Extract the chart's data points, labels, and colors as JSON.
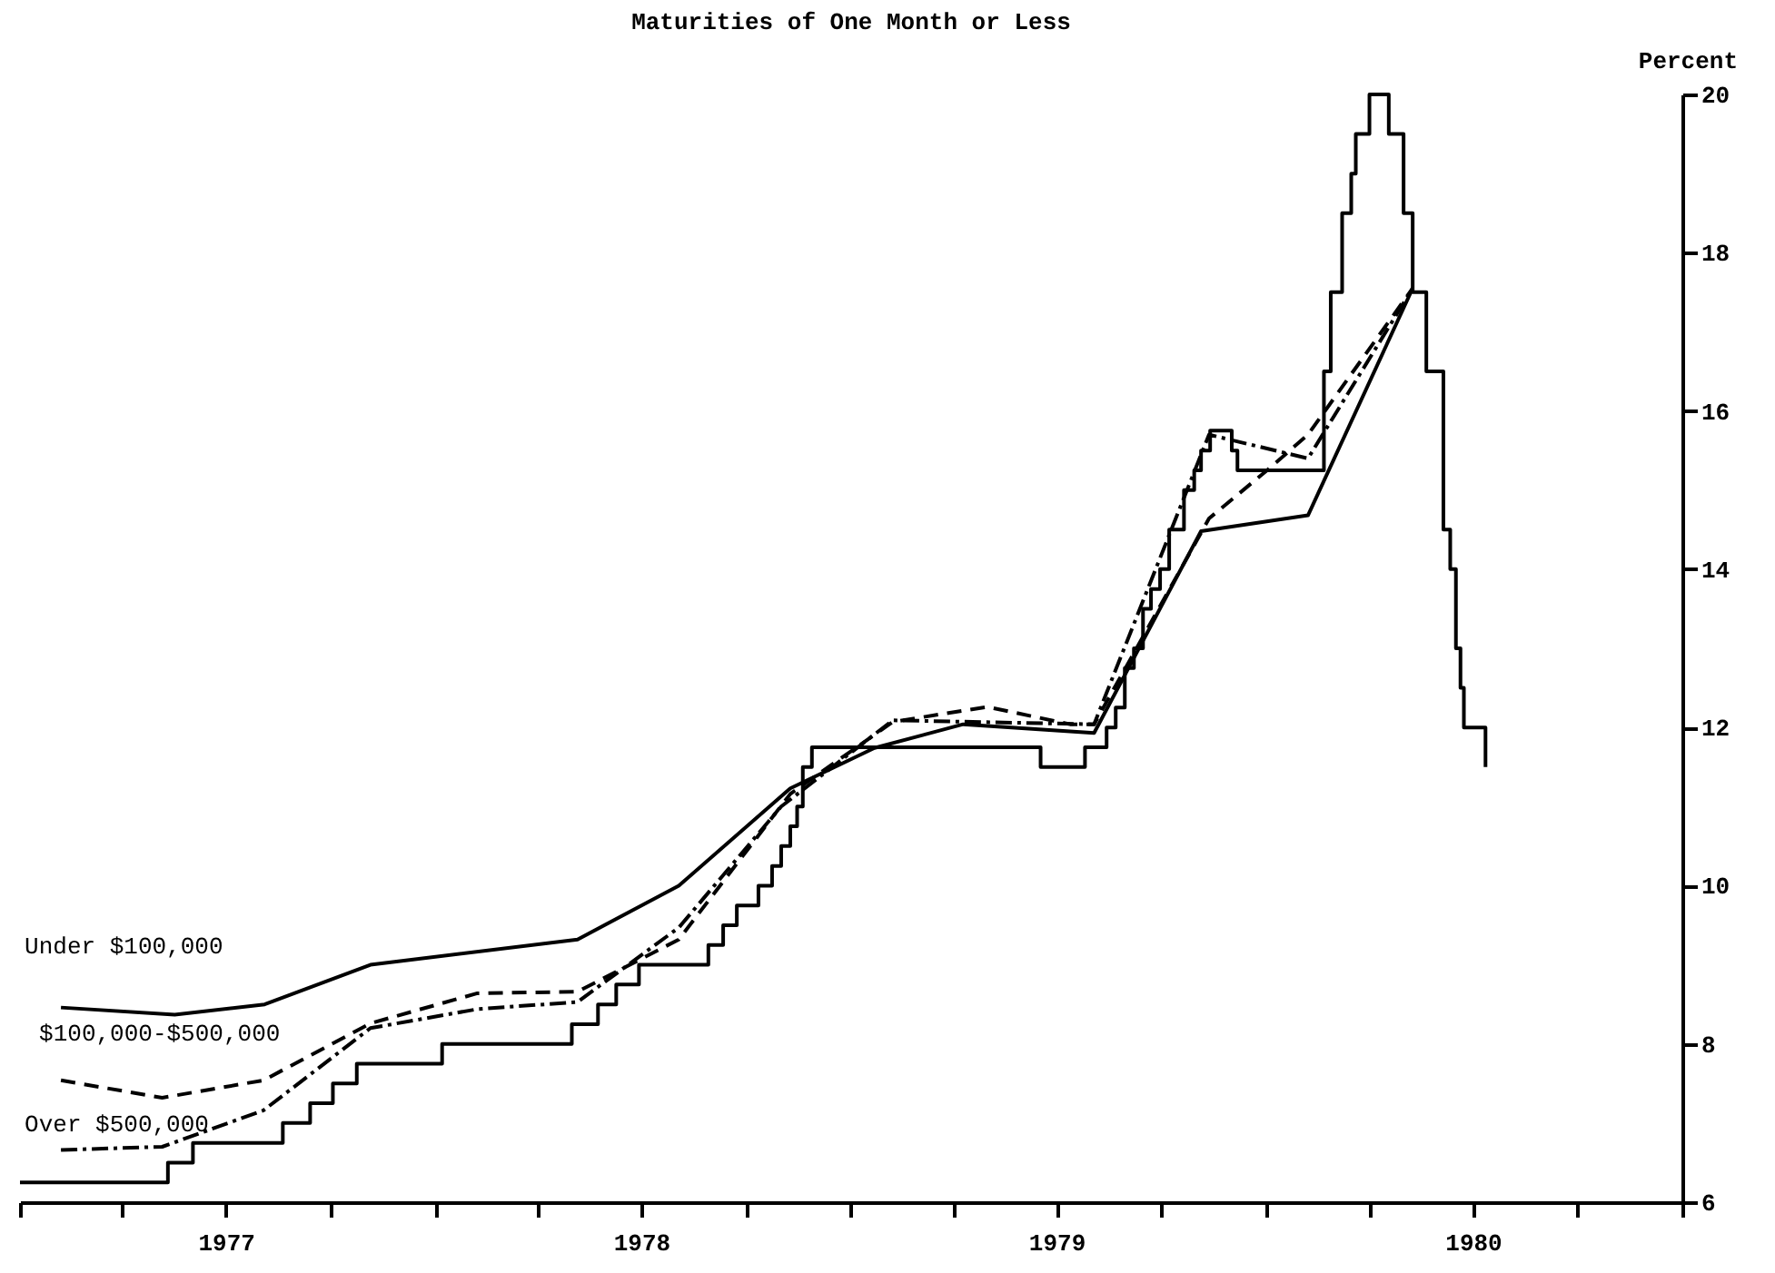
{
  "chart_data": {
    "type": "line",
    "title": "Maturities of One Month or Less",
    "ylabel": "Percent",
    "xlim": [
      "1977-01-01",
      "1981-01-01"
    ],
    "xticks": [
      {
        "value": "1977-01-01",
        "label": null
      },
      {
        "value": "1977-04-01",
        "label": null
      },
      {
        "value": "1977-07-01",
        "label": "1977"
      },
      {
        "value": "1977-10-01",
        "label": null
      },
      {
        "value": "1978-01-01",
        "label": null
      },
      {
        "value": "1978-04-01",
        "label": null
      },
      {
        "value": "1978-07-01",
        "label": "1978"
      },
      {
        "value": "1978-10-01",
        "label": null
      },
      {
        "value": "1979-01-01",
        "label": null
      },
      {
        "value": "1979-04-01",
        "label": null
      },
      {
        "value": "1979-07-01",
        "label": "1979"
      },
      {
        "value": "1979-10-01",
        "label": null
      },
      {
        "value": "1980-01-01",
        "label": null
      },
      {
        "value": "1980-04-01",
        "label": null
      },
      {
        "value": "1980-07-01",
        "label": "1980"
      },
      {
        "value": "1980-10-01",
        "label": null
      },
      {
        "value": "1981-01-01",
        "label": null
      }
    ],
    "ylim": [
      6,
      20
    ],
    "yticks": [
      6,
      8,
      10,
      12,
      14,
      16,
      18,
      20
    ],
    "grid": false,
    "series": [
      {
        "type": "step",
        "color": "#000000",
        "line_style": "solid",
        "x": [
          "1977-01-01",
          "1977-05-11",
          "1977-06-02",
          "1977-08-20",
          "1977-09-13",
          "1977-10-03",
          "1977-10-24",
          "1978-01-07",
          "1978-05-01",
          "1978-05-24",
          "1978-06-09",
          "1978-06-29",
          "1978-08-29",
          "1978-09-11",
          "1978-09-23",
          "1978-10-12",
          "1978-10-24",
          "1978-11-01",
          "1978-11-09",
          "1978-11-15",
          "1978-11-20",
          "1978-11-28",
          "1979-06-17",
          "1979-07-26",
          "1979-08-14",
          "1979-08-22",
          "1979-08-30",
          "1979-09-07",
          "1979-09-15",
          "1979-09-22",
          "1979-09-30",
          "1979-10-08",
          "1979-10-21",
          "1979-10-30",
          "1979-11-05",
          "1979-11-13",
          "1979-12-02",
          "1979-12-07",
          "1980-02-21",
          "1980-02-27",
          "1980-03-08",
          "1980-03-16",
          "1980-03-20",
          "1980-04-01",
          "1980-04-18",
          "1980-05-01",
          "1980-05-09",
          "1980-05-21",
          "1980-06-05",
          "1980-06-11",
          "1980-06-16",
          "1980-06-20",
          "1980-06-23",
          "1980-07-12"
        ],
        "values": [
          6.25,
          6.5,
          6.75,
          7.0,
          7.25,
          7.5,
          7.75,
          8.0,
          8.25,
          8.5,
          8.75,
          9.0,
          9.25,
          9.5,
          9.75,
          10.0,
          10.25,
          10.5,
          10.75,
          11.0,
          11.5,
          11.75,
          11.5,
          11.75,
          12.0,
          12.25,
          12.75,
          13.0,
          13.5,
          13.75,
          14.0,
          14.5,
          15.0,
          15.25,
          15.5,
          15.75,
          15.5,
          15.25,
          16.5,
          17.5,
          18.5,
          19.0,
          19.5,
          20.0,
          19.5,
          18.5,
          17.5,
          16.5,
          14.5,
          14.0,
          13.0,
          12.5,
          12.0,
          11.5
        ]
      },
      {
        "name": "Under $100,000",
        "color": "#000000",
        "line_style": "solid",
        "x": [
          "1977-02-06",
          "1977-05-17",
          "1977-08-04",
          "1977-11-05",
          "1978-05-06",
          "1978-08-03",
          "1978-11-09",
          "1979-01-22",
          "1979-04-10",
          "1979-08-03",
          "1979-11-05",
          "1980-02-07",
          "1980-05-09"
        ],
        "values": [
          8.46,
          8.37,
          8.5,
          9.0,
          9.32,
          10.0,
          11.23,
          11.74,
          12.04,
          11.93,
          14.48,
          14.68,
          17.55
        ]
      },
      {
        "name": "$100,000-$500,000",
        "color": "#000000",
        "line_style": "dashed",
        "x": [
          "1977-02-06",
          "1977-05-06",
          "1977-08-03",
          "1977-11-05",
          "1978-02-07",
          "1978-05-06",
          "1978-08-03",
          "1978-11-09",
          "1979-02-07",
          "1979-05-01",
          "1979-07-13",
          "1979-08-03",
          "1979-11-12",
          "1980-01-02",
          "1980-02-07",
          "1980-05-09"
        ],
        "values": [
          7.54,
          7.32,
          7.54,
          8.26,
          8.64,
          8.66,
          9.32,
          11.16,
          12.07,
          12.26,
          12.04,
          12.04,
          14.64,
          15.25,
          15.7,
          17.55
        ]
      },
      {
        "name": "Over $500,000",
        "color": "#000000",
        "line_style": "dotted",
        "x": [
          "1977-02-06",
          "1977-05-06",
          "1977-08-03",
          "1977-11-05",
          "1978-02-07",
          "1978-05-06",
          "1978-08-03",
          "1978-11-01",
          "1979-02-07",
          "1979-08-03",
          "1979-11-12",
          "1980-02-07",
          "1980-05-09"
        ],
        "values": [
          6.66,
          6.7,
          7.16,
          8.2,
          8.44,
          8.53,
          9.47,
          11.0,
          12.09,
          12.04,
          15.7,
          15.4,
          17.55
        ]
      }
    ]
  }
}
